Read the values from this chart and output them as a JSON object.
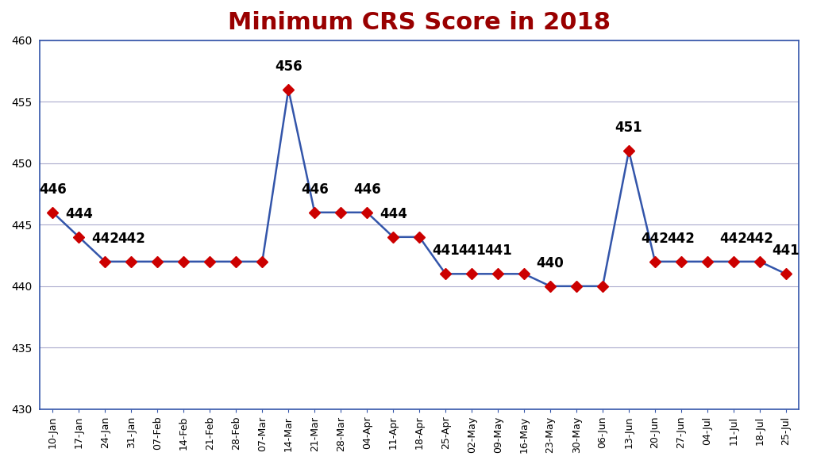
{
  "title": "Minimum CRS Score in 2018",
  "title_color": "#990000",
  "title_fontsize": 22,
  "title_fontweight": "bold",
  "categories": [
    "10-Jan",
    "17-Jan",
    "24-Jan",
    "31-Jan",
    "07-Feb",
    "14-Feb",
    "21-Feb",
    "28-Feb",
    "07-Mar",
    "14-Mar",
    "21-Mar",
    "28-Mar",
    "04-Apr",
    "11-Apr",
    "18-Apr",
    "25-Apr",
    "02-May",
    "09-May",
    "16-May",
    "23-May",
    "30-May",
    "06-Jun",
    "13-Jun",
    "20-Jun",
    "27-Jun",
    "04-Jul",
    "11-Jul",
    "18-Jul",
    "25-Jul"
  ],
  "values": [
    446,
    444,
    442,
    442,
    442,
    442,
    442,
    442,
    442,
    456,
    446,
    446,
    446,
    444,
    444,
    441,
    441,
    441,
    441,
    440,
    440,
    440,
    451,
    442,
    442,
    442,
    442,
    442,
    441
  ],
  "annotations": {
    "0": "446",
    "1": "444",
    "2": "442",
    "3": "442",
    "9": "456",
    "10": "446",
    "12": "446",
    "13": "444",
    "15": "441",
    "16": "441",
    "17": "441",
    "19": "440",
    "22": "451",
    "23": "442",
    "24": "442",
    "26": "442",
    "27": "442",
    "28": "441"
  },
  "line_color": "#3355aa",
  "marker_color": "#cc0000",
  "marker_style": "D",
  "marker_size": 7,
  "linewidth": 1.8,
  "ylim": [
    430,
    460
  ],
  "yticks": [
    430,
    435,
    440,
    445,
    450,
    455,
    460
  ],
  "background_color": "#ffffff",
  "grid_color": "#aaaacc",
  "annotation_fontsize": 12,
  "annotation_fontweight": "bold",
  "border_color": "#3355aa"
}
